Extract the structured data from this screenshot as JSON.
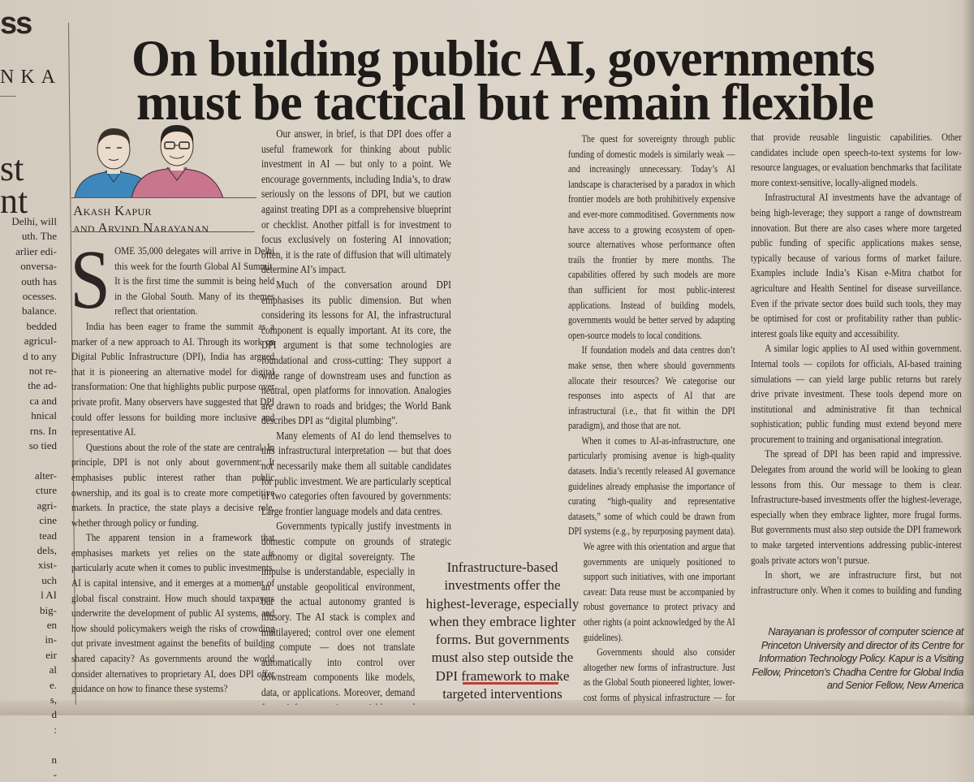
{
  "colors": {
    "paper": "#dcd3c7",
    "ink": "#2b2623",
    "pullquote_rule": "#c43a3a",
    "shirt_left": "#3d87bd",
    "shirt_right": "#c9758f"
  },
  "left_strip": {
    "head1": "ss",
    "head2": "NKA",
    "big1": "st",
    "big2": "nt",
    "lines": [
      "Delhi, will",
      "uth. The",
      "arlier edi-",
      "onversa-",
      "outh has",
      "ocesses.",
      "balance.",
      "bedded",
      "agricul-",
      "d to any",
      "not re-",
      "the ad-",
      "ca and",
      "hnical",
      "rns. In",
      "so tied",
      "",
      "alter-",
      "cture",
      "agri-",
      "cine",
      "tead",
      "dels,",
      "xist-",
      "uch",
      "l AI",
      "big-",
      "en",
      "in-",
      "eir",
      "al",
      "e.",
      "s,",
      "d",
      ":",
      "",
      "n",
      "-"
    ]
  },
  "article": {
    "headline_lines": [
      "On building public AI, governments",
      "must be tactical but remain flexible"
    ],
    "byline_lines": [
      "Akash Kapur",
      "and Arvind Narayanan"
    ],
    "illustration": "author-caricatures",
    "drop_cap": "S",
    "columns": [
      [
        "OME 35,000 delegates will arrive in Delhi this week for the fourth Global AI Summit. It is the first time the summit is being held in the Global South. Many of its themes reflect that orientation.",
        "India has been eager to frame the summit as a marker of a new approach to AI. Through its work on Digital Public Infrastructure (DPI), India has argued that it is pioneering an alternative model for digital transformation: One that highlights public purpose over private profit. Many observers have suggested that DPI could offer lessons for building more inclusive and representative AI.",
        "Questions about the role of the state are central. In principle, DPI is not only about government: It emphasises public interest rather than public ownership, and its goal is to create more competitive markets. In practice, the state plays a decisive role, whether through policy or funding.",
        "The apparent tension in a framework that emphasises markets yet relies on the state is particularly acute when it comes to public investments. AI is capital intensive, and it emerges at a moment of global fiscal constraint. How much should taxpayers underwrite the development of public AI systems, and how should policymakers weigh the risks of crowding out private investment against the benefits of building shared capacity? As governments around the world consider alternatives to proprietary AI, does DPI offer guidance on how to finance these systems?"
      ],
      [
        "Our answer, in brief, is that DPI does offer a useful framework for thinking about public investment in AI — but only to a point. We encourage governments, including India’s, to draw seriously on the lessons of DPI, but we caution against treating DPI as a comprehensive blueprint or checklist. Another pitfall is for investment to focus exclusively on fostering AI innovation; often, it is the rate of diffusion that will ultimately determine AI’s impact.",
        "Much of the conversation around DPI emphasises its public dimension. But when considering its lessons for AI, the infrastructural component is equally important. At its core, the DPI argument is that some technologies are foundational and cross-cutting: They support a wide range of downstream uses and function as neutral, open platforms for innovation. Analogies are drawn to roads and bridges; the World Bank describes DPI as “digital plumbing”.",
        "Many elements of AI do lend themselves to this infrastructural interpretation — but that does not necessarily make them all suitable candidates for public investment. We are particularly sceptical of two categories often favoured by governments: Large frontier language models and data centres.",
        "Governments typically justify investments in domestic compute on grounds of strategic autonomy or digital sovereignty. The impulse is understandable, especially in an unstable geopolitical environment, but the actual autonomy granted is illusory. The AI stack is complex and multilayered; control over one element — compute — does not translate automatically into control over downstream components like models, data, or applications. Moreover, demand for inference is variable and unpredictable, making the quest to secure autonomy through domestic compute at best partial, prone to both underutilisation and shortages."
      ],
      [
        "The quest for sovereignty through public funding of domestic models is similarly weak — and increasingly unnecessary. Today’s AI landscape is characterised by a paradox in which frontier models are both prohibitively expensive and ever-more commoditised. Governments now have access to a growing ecosystem of open-source alternatives whose performance often trails the frontier by mere months. The capabilities offered by such models are more than sufficient for most public-interest applications. Instead of building models, governments would be better served by adapting open-source models to local conditions.",
        "If foundation models and data centres don’t make sense, then where should governments allocate their resources? We categorise our responses into aspects of AI that are infrastructural (i.e., that fit within the DPI paradigm), and those that are not.",
        "When it comes to AI-as-infrastructure, one particularly promising avenue is high-quality datasets. India’s recently released AI governance guidelines already emphasise the importance of curating “high-quality and representative datasets,” some of which could be drawn from DPI systems (e.g., by repurposing payment data). We agree with this orientation and argue that governments are uniquely positioned to support such initiatives, with one important caveat: Data reuse must be accompanied by robust governance to protect privacy and other rights (a point acknowledged by the AI guidelines).",
        "Governments should also consider altogether new forms of infrastructure. Just as the Global South pioneered lighter, lower-cost forms of physical infrastructure — for instance, bus rapid transit systems — there are opportunities to rethink foundational AI. General-purpose translation modules offer an example. Initiatives like Bhashini in India and Masakhane in Africa are not end-user applications but shared layers"
      ],
      [
        "that provide reusable linguistic capabilities. Other candidates include open speech-to-text systems for low-resource languages, or evaluation benchmarks that facilitate more context-sensitive, locally-aligned models.",
        "Infrastructural AI investments have the advantage of being high-leverage; they support a range of downstream innovation. But there are also cases where more targeted public funding of specific applications makes sense, typically because of various forms of market failure. Examples include India’s Kisan e-Mitra chatbot for agriculture and Health Sentinel for disease surveillance. Even if the private sector does build such tools, they may be optimised for cost or profitability rather than public-interest goals like equity and accessibility.",
        "A similar logic applies to AI used within government. Internal tools — copilots for officials, AI-based training simulations — can yield large public returns but rarely drive private investment. These tools depend more on institutional and administrative fit than technical sophistication; public funding must extend beyond mere procurement to training and organisational integration.",
        "The spread of DPI has been rapid and impressive. Delegates from around the world will be looking to glean lessons from this. Our message to them is clear. Infrastructure-based investments offer the highest-leverage, especially when they embrace lighter, more frugal forms. But governments must also step outside the DPI framework to make targeted interventions addressing public-interest goals private actors won’t pursue.",
        "In short, we are infrastructure first, but not infrastructure only. When it comes to building and funding public AI, governments must be tactical, but also flexible."
      ]
    ],
    "pull_quote": "Infrastructure-based investments offer the highest-leverage, especially when they embrace lighter forms. But governments must also step outside the DPI framework to make targeted interventions",
    "author_bio": "Narayanan is professor of computer science at Princeton University and director of its Centre for Information Technology Policy. Kapur is a Visiting Fellow, Princeton’s Chadha Centre for Global India and Senior Fellow, New America"
  }
}
